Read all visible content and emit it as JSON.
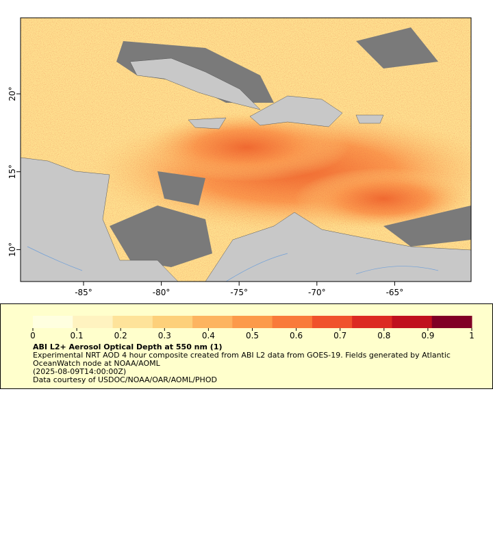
{
  "map": {
    "xticks": [
      {
        "value": -85,
        "label": "-85°"
      },
      {
        "value": -80,
        "label": "-80°"
      },
      {
        "value": -75,
        "label": "-75°"
      },
      {
        "value": -70,
        "label": "-70°"
      },
      {
        "value": -65,
        "label": "-65°"
      }
    ],
    "yticks": [
      {
        "value": 20,
        "label": "20°"
      },
      {
        "value": 15,
        "label": "15°"
      },
      {
        "value": 10,
        "label": "10°"
      }
    ],
    "colorbar": {
      "range": [
        0,
        1
      ],
      "ticks": [
        0,
        0.1,
        0.2,
        0.3,
        0.4,
        0.5,
        0.6,
        0.7,
        0.8,
        0.9,
        1
      ],
      "colors": [
        "#ffffe0",
        "#fff3c0",
        "#fee39a",
        "#fdd07a",
        "#fdb460",
        "#fc9a4a",
        "#f97a3a",
        "#f0522c",
        "#dc2a22",
        "#c0101e",
        "#800026"
      ]
    },
    "title": "ABI L2+ Aerosol Optical Depth at 550 nm (1)",
    "description": "Experimental NRT AOD 4 hour composite created from ABI L2 data from GOES-19. Fields generated by Atlantic OceanWatch node at NOAA/AOML",
    "time": "(2025-08-09T14:00:00Z)",
    "credit": "Data courtesy of USDOC/NOAA/OAR/AOML/PHOD"
  }
}
